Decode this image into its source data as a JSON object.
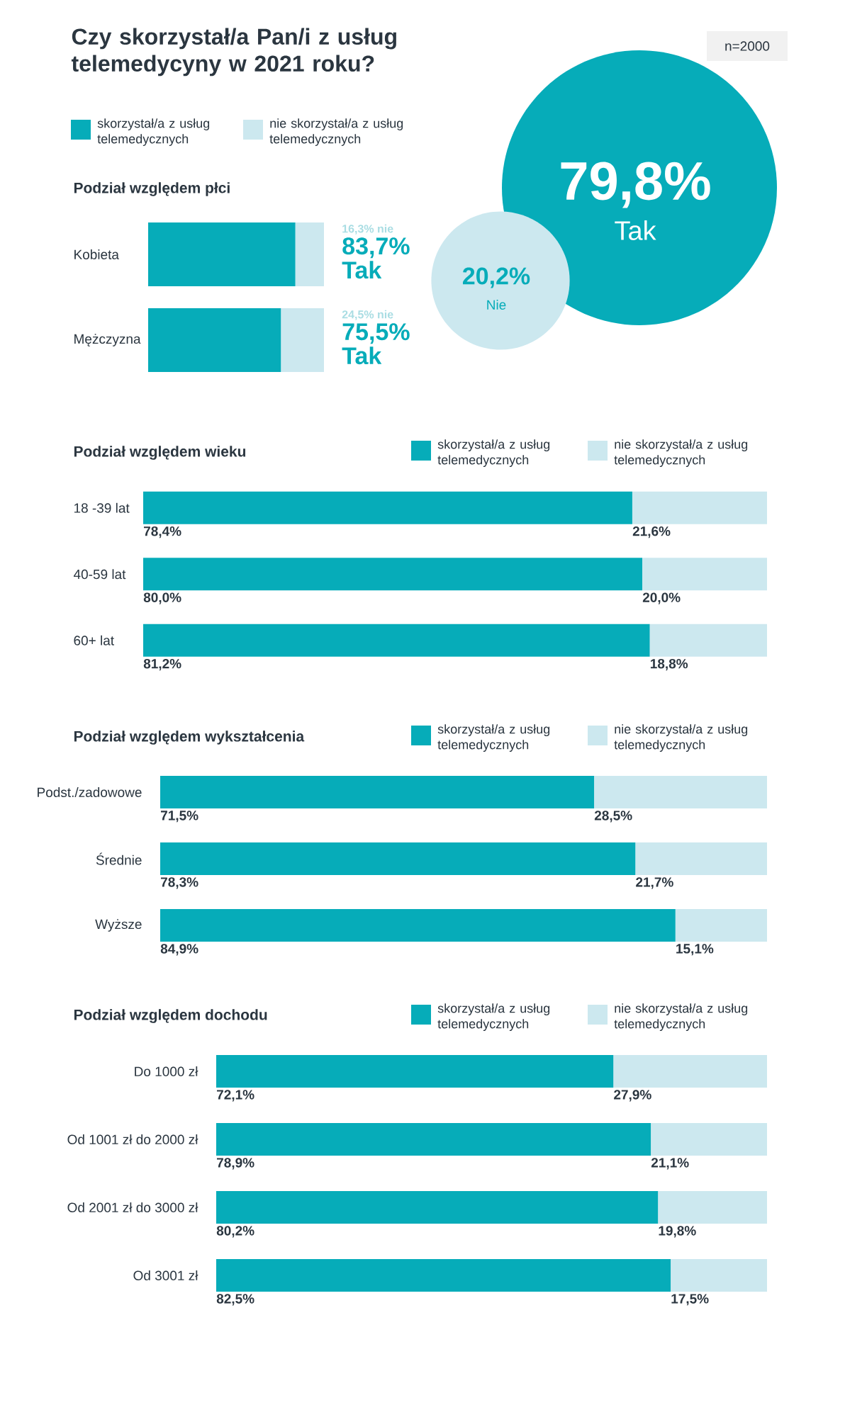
{
  "chart_data": [
    {
      "type": "other",
      "title": "Czy skorzystał/a Pan/i z usług telemedycyny w 2021 roku?",
      "annotations": [
        "n=2000"
      ],
      "categories": [
        "Tak",
        "Nie"
      ],
      "values": [
        79.8,
        20.2
      ],
      "value_labels": [
        "79,8%",
        "20,2%"
      ],
      "colors": [
        "#06acb9",
        "#cce8ef"
      ]
    },
    {
      "type": "bar",
      "orientation": "horizontal",
      "stacked": true,
      "title": "Podział względem płci",
      "categories": [
        "Kobieta",
        "Mężczyzna"
      ],
      "series": [
        {
          "name": "skorzystał/a z usług telemedycznych",
          "color": "#06acb9",
          "values": [
            83.7,
            75.5
          ],
          "value_labels": [
            "83,7% Tak",
            "75,5% Tak"
          ]
        },
        {
          "name": "nie skorzystał/a z usług telemedycznych",
          "color": "#cce8ef",
          "values": [
            16.3,
            24.5
          ],
          "value_labels": [
            "16,3% nie",
            "24,5% nie"
          ]
        }
      ],
      "xlim": [
        0,
        100
      ],
      "tick_labels": "y",
      "legend": "top"
    },
    {
      "type": "bar",
      "orientation": "horizontal",
      "stacked": true,
      "title": "Podział względem wieku",
      "categories": [
        "18 -39 lat",
        "40-59 lat",
        "60+ lat"
      ],
      "series": [
        {
          "name": "skorzystał/a z usług telemedycznych",
          "color": "#06acb9",
          "values": [
            78.4,
            80.0,
            81.2
          ],
          "value_labels": [
            "78,4%",
            "80,0%",
            "81,2%"
          ]
        },
        {
          "name": "nie skorzystał/a z usług telemedycznych",
          "color": "#cce8ef",
          "values": [
            21.6,
            20.0,
            18.8
          ],
          "value_labels": [
            "21,6%",
            "20,0%",
            "18,8%"
          ]
        }
      ],
      "xlim": [
        0,
        100
      ],
      "tick_labels": "y",
      "legend": "top right"
    },
    {
      "type": "bar",
      "orientation": "horizontal",
      "stacked": true,
      "title": "Podział względem wykształcenia",
      "categories": [
        "Podst./zadowowe",
        "Średnie",
        "Wyższe"
      ],
      "series": [
        {
          "name": "skorzystał/a z usług telemedycznych",
          "color": "#06acb9",
          "values": [
            71.5,
            78.3,
            84.9
          ],
          "value_labels": [
            "71,5%",
            "78,3%",
            "84,9%"
          ]
        },
        {
          "name": "nie skorzystał/a z usług telemedycznych",
          "color": "#cce8ef",
          "values": [
            28.5,
            21.7,
            15.1
          ],
          "value_labels": [
            "28,5%",
            "21,7%",
            "15,1%"
          ]
        }
      ],
      "xlim": [
        0,
        100
      ],
      "tick_labels": "y",
      "legend": "top right"
    },
    {
      "type": "bar",
      "orientation": "horizontal",
      "stacked": true,
      "title": "Podział względem dochodu",
      "categories": [
        "Do 1000 zł",
        "Od 1001 zł do 2000 zł",
        "Od 2001 zł do 3000 zł",
        "Od 3001 zł"
      ],
      "series": [
        {
          "name": "skorzystał/a z usług telemedycznych",
          "color": "#06acb9",
          "values": [
            72.1,
            78.9,
            80.2,
            82.5
          ],
          "value_labels": [
            "72,1%",
            "78,9%",
            "80,2%",
            "82,5%"
          ]
        },
        {
          "name": "nie skorzystał/a z usług telemedycznych",
          "color": "#cce8ef",
          "values": [
            27.9,
            21.1,
            19.8,
            17.5
          ],
          "value_labels": [
            "27,9%",
            "21,1%",
            "19,8%",
            "17,5%"
          ]
        }
      ],
      "xlim": [
        0,
        100
      ],
      "tick_labels": "y",
      "legend": "top right"
    }
  ]
}
